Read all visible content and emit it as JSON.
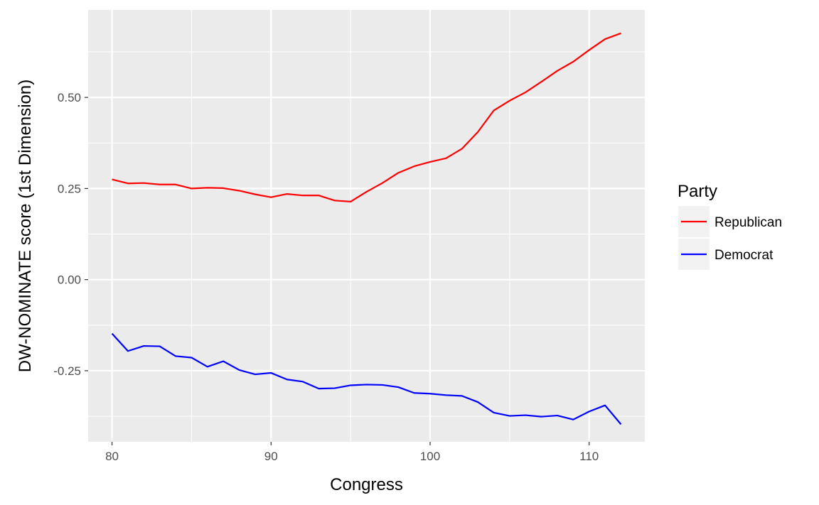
{
  "chart_data": {
    "type": "line",
    "title": "",
    "xlabel": "Congress",
    "ylabel": "DW-NOMINATE score (1st Dimension)",
    "xlim": [
      78.5,
      113.5
    ],
    "ylim": [
      -0.445,
      0.74
    ],
    "x_ticks": [
      80,
      90,
      100,
      110
    ],
    "x_tick_labels": [
      "80",
      "90",
      "100",
      "110"
    ],
    "y_ticks": [
      -0.25,
      0.0,
      0.25,
      0.5
    ],
    "y_tick_labels": [
      "-0.25",
      "0.00",
      "0.25",
      "0.50"
    ],
    "grid": true,
    "legend": {
      "title": "Party",
      "position": "right"
    },
    "x": [
      80,
      81,
      82,
      83,
      84,
      85,
      86,
      87,
      88,
      89,
      90,
      91,
      92,
      93,
      94,
      95,
      96,
      97,
      98,
      99,
      100,
      101,
      102,
      103,
      104,
      105,
      106,
      107,
      108,
      109,
      110,
      111,
      112
    ],
    "series": [
      {
        "name": "Republican",
        "color": "#ff0000",
        "values": [
          0.275,
          0.264,
          0.265,
          0.261,
          0.261,
          0.25,
          0.252,
          0.251,
          0.244,
          0.234,
          0.226,
          0.235,
          0.231,
          0.231,
          0.217,
          0.214,
          0.241,
          0.265,
          0.293,
          0.311,
          0.323,
          0.333,
          0.359,
          0.405,
          0.464,
          0.491,
          0.514,
          0.543,
          0.573,
          0.598,
          0.63,
          0.66,
          0.676
        ]
      },
      {
        "name": "Democrat",
        "color": "#0000ff",
        "values": [
          -0.148,
          -0.196,
          -0.182,
          -0.183,
          -0.21,
          -0.214,
          -0.239,
          -0.224,
          -0.248,
          -0.26,
          -0.256,
          -0.274,
          -0.28,
          -0.299,
          -0.298,
          -0.29,
          -0.288,
          -0.289,
          -0.295,
          -0.311,
          -0.313,
          -0.317,
          -0.319,
          -0.336,
          -0.365,
          -0.374,
          -0.372,
          -0.376,
          -0.373,
          -0.384,
          -0.362,
          -0.345,
          -0.397
        ]
      }
    ]
  }
}
